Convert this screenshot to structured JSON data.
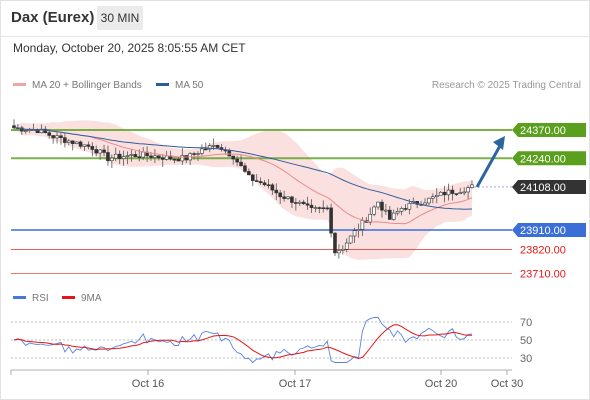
{
  "header": {
    "title": "Dax (Eurex)",
    "interval_label": "30 MIN"
  },
  "timestamp": "Monday, October 20, 2025 8:05:55 AM CET",
  "legend": {
    "bollinger": "MA 20 + Bollinger Bands",
    "ma50": "MA 50",
    "rsi": "RSI",
    "rsi_ma": "9MA"
  },
  "copyright": "Research © 2025 Trading Central",
  "colors": {
    "bollinger": "#f08080",
    "ma50": "#2f5d9c",
    "resistance": "#5aa01e",
    "support": "#3a6fd8",
    "target_red": "#e21818",
    "current_price": "#333333",
    "arrow": "#2b65a0"
  },
  "chart_data": {
    "type": "candlestick",
    "instrument": "Dax (Eurex)",
    "interval": "30 MIN",
    "levels": [
      {
        "price": "24370.00",
        "kind": "resistance"
      },
      {
        "price": "24240.00",
        "kind": "resistance"
      },
      {
        "price": "24108.00",
        "kind": "current"
      },
      {
        "price": "23910.00",
        "kind": "support"
      },
      {
        "price": "23820.00",
        "kind": "target"
      },
      {
        "price": "23710.00",
        "kind": "target"
      }
    ],
    "x_ticks": [
      "Oct 16",
      "Oct 17",
      "Oct 20",
      "Oct 30"
    ],
    "rsi": {
      "ticks": [
        "70",
        "50",
        "30"
      ],
      "levels": [
        70,
        50,
        30
      ]
    },
    "scenario_arrow": {
      "from_price": 24108,
      "to_price": 24370,
      "direction": "up"
    }
  }
}
